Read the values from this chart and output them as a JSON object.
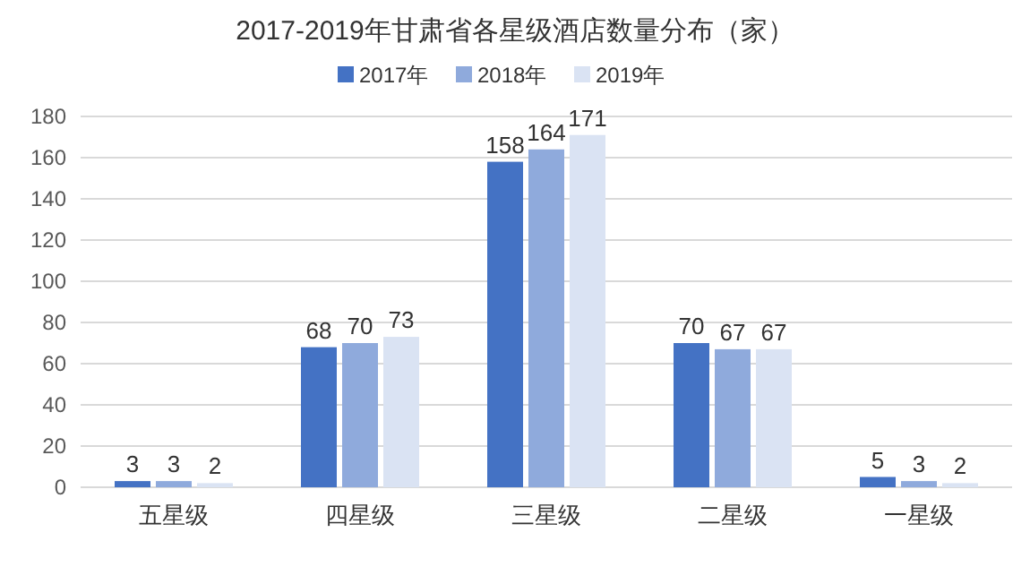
{
  "chart_data": {
    "type": "bar",
    "title": "2017-2019年甘肃省各星级酒店数量分布（家）",
    "categories": [
      "五星级",
      "四星级",
      "三星级",
      "二星级",
      "一星级"
    ],
    "series": [
      {
        "name": "2017年",
        "color": "#4472c4",
        "values": [
          3,
          68,
          158,
          70,
          5
        ]
      },
      {
        "name": "2018年",
        "color": "#8faadc",
        "values": [
          3,
          70,
          164,
          67,
          3
        ]
      },
      {
        "name": "2019年",
        "color": "#dae3f3",
        "values": [
          2,
          73,
          171,
          67,
          2
        ]
      }
    ],
    "ylim": [
      0,
      180
    ],
    "yticks": [
      0,
      20,
      40,
      60,
      80,
      100,
      120,
      140,
      160,
      180
    ],
    "grid": "y",
    "legend": "top",
    "data_labels": true
  }
}
